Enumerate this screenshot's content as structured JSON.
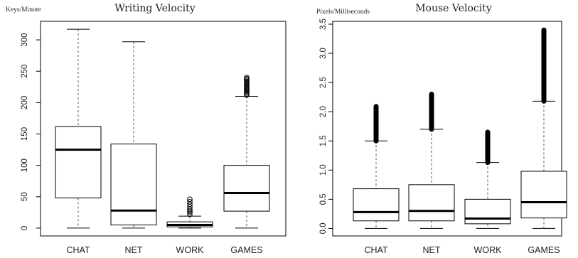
{
  "chart_data": [
    {
      "type": "boxplot",
      "title": "Writing Velocity",
      "ylabel": "Keys/Minute",
      "categories": [
        "CHAT",
        "NET",
        "WORK",
        "GAMES"
      ],
      "ylim": [
        -8,
        325
      ],
      "yticks": [
        0,
        50,
        100,
        150,
        200,
        250,
        300
      ],
      "ytick_labels": [
        "0",
        "50",
        "100",
        "150",
        "200",
        "250",
        "300"
      ],
      "boxes": [
        {
          "category": "CHAT",
          "whisker_low": 0,
          "q1": 48,
          "median": 125,
          "q3": 162,
          "whisker_high": 317,
          "outliers": []
        },
        {
          "category": "NET",
          "whisker_low": 0,
          "q1": 5,
          "median": 28,
          "q3": 134,
          "whisker_high": 297,
          "outliers": []
        },
        {
          "category": "WORK",
          "whisker_low": 0,
          "q1": 2,
          "median": 5,
          "q3": 10,
          "whisker_high": 19,
          "outliers": [
            22,
            25,
            27,
            30,
            34,
            38,
            42,
            46
          ]
        },
        {
          "category": "GAMES",
          "whisker_low": 0,
          "q1": 27,
          "median": 56,
          "q3": 100,
          "whisker_high": 210,
          "outliers": [
            212,
            214,
            216,
            218,
            220,
            222,
            224,
            226,
            228,
            230,
            232,
            234,
            236,
            238,
            240
          ]
        }
      ]
    },
    {
      "type": "boxplot",
      "title": "Mouse Velocity",
      "ylabel": "Pixels/Milliseconds",
      "categories": [
        "CHAT",
        "NET",
        "WORK",
        "GAMES"
      ],
      "ylim": [
        -0.08,
        3.5
      ],
      "yticks": [
        0.0,
        0.5,
        1.0,
        1.5,
        2.0,
        2.5,
        3.0,
        3.5
      ],
      "ytick_labels": [
        "0.0",
        "0.5",
        "1.0",
        "1.5",
        "2.0",
        "2.5",
        "3.0",
        "3.5"
      ],
      "boxes": [
        {
          "category": "CHAT",
          "whisker_low": 0,
          "q1": 0.13,
          "median": 0.28,
          "q3": 0.68,
          "whisker_high": 1.5,
          "outlier_range": [
            1.5,
            2.09
          ]
        },
        {
          "category": "NET",
          "whisker_low": 0,
          "q1": 0.13,
          "median": 0.3,
          "q3": 0.75,
          "whisker_high": 1.7,
          "outlier_range": [
            1.7,
            2.3
          ]
        },
        {
          "category": "WORK",
          "whisker_low": 0,
          "q1": 0.08,
          "median": 0.17,
          "q3": 0.5,
          "whisker_high": 1.13,
          "outlier_range": [
            1.13,
            1.65
          ]
        },
        {
          "category": "GAMES",
          "whisker_low": 0,
          "q1": 0.18,
          "median": 0.45,
          "q3": 0.98,
          "whisker_high": 2.18,
          "outlier_range": [
            2.18,
            3.4
          ]
        }
      ]
    }
  ]
}
